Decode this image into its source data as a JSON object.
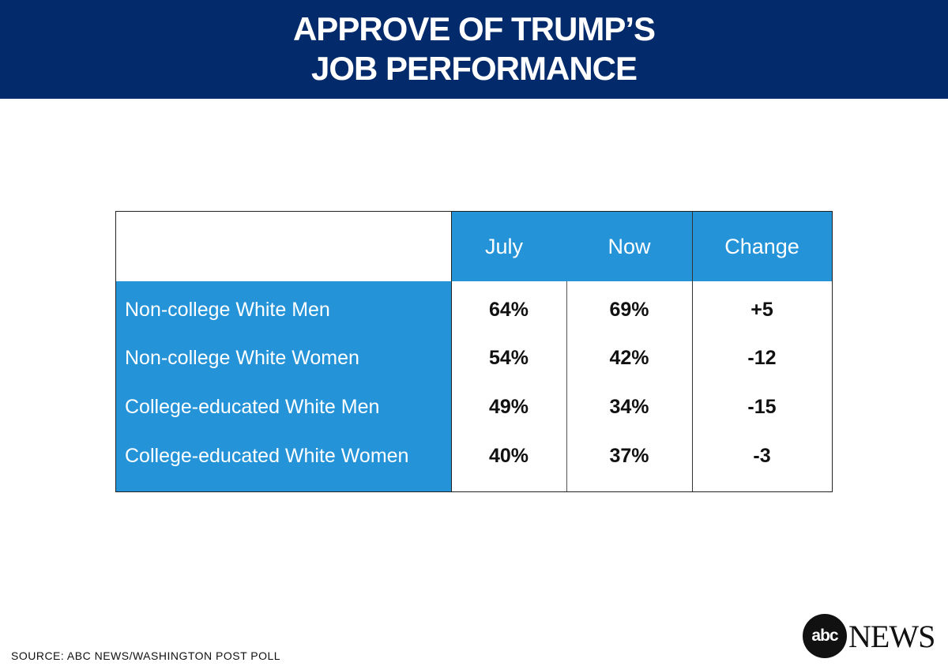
{
  "header": {
    "title_line1": "APPROVE OF TRUMP’S",
    "title_line2": "JOB PERFORMANCE"
  },
  "chart_data": {
    "type": "table",
    "columns": [
      "July",
      "Now",
      "Change"
    ],
    "rows": [
      {
        "label": "Non-college White Men",
        "july": "64%",
        "now": "69%",
        "change": "+5"
      },
      {
        "label": "Non-college White Women",
        "july": "54%",
        "now": "42%",
        "change": "-12"
      },
      {
        "label": "College-educated White Men",
        "july": "49%",
        "now": "34%",
        "change": "-15"
      },
      {
        "label": "College-educated White Women",
        "july": "40%",
        "now": "37%",
        "change": "-3"
      }
    ]
  },
  "footer": {
    "source": "SOURCE: ABC NEWS/WASHINGTON POST POLL",
    "logo_circle": "abc",
    "logo_word": "NEWS"
  },
  "colors": {
    "header_bg": "#032b6b",
    "table_accent": "#2593d8"
  }
}
